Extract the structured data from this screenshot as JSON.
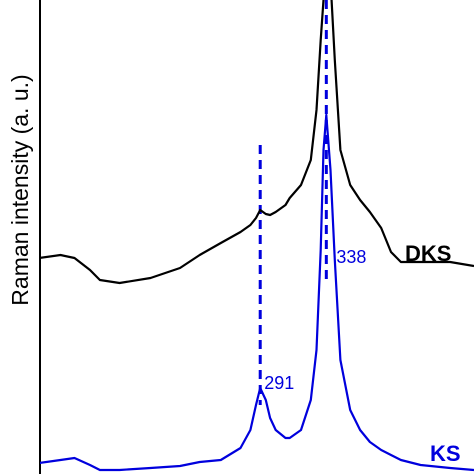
{
  "chart_data": {
    "type": "line",
    "y_label": "Raman intensity (a. u.)",
    "x": [
      106,
      120,
      134,
      149,
      159,
      170,
      177,
      191,
      213,
      234,
      248,
      263,
      277,
      284,
      288,
      291,
      295,
      298,
      302,
      309,
      312,
      320,
      327,
      331,
      334,
      336,
      338,
      341,
      344,
      348,
      355,
      362,
      369,
      377,
      384,
      391,
      405,
      426,
      443
    ],
    "series": [
      {
        "name": "DKS",
        "color": "#000000",
        "values": [
          209,
          212,
          216,
          219,
          216,
          204,
          194,
          191,
          196,
          206,
          219,
          231,
          242,
          249,
          256,
          264,
          260,
          259,
          262,
          269,
          276,
          289,
          314,
          364,
          434,
          474,
          514,
          494,
          414,
          324,
          289,
          274,
          262,
          246,
          222,
          212,
          212,
          212,
          208
        ]
      },
      {
        "name": "KS",
        "color": "#0000dd",
        "values": [
          6,
          8,
          11,
          14,
          16,
          9,
          4,
          4,
          6,
          8,
          12,
          14,
          26,
          44,
          69,
          86,
          74,
          56,
          44,
          36,
          36,
          44,
          74,
          124,
          224,
          324,
          359,
          304,
          214,
          114,
          64,
          44,
          32,
          24,
          19,
          14,
          9,
          6,
          4
        ]
      }
    ],
    "peaks": [
      291,
      338
    ],
    "peak_color": "#0000dd",
    "xlim": [
      106,
      443
    ],
    "ylim": [
      0,
      474
    ]
  }
}
